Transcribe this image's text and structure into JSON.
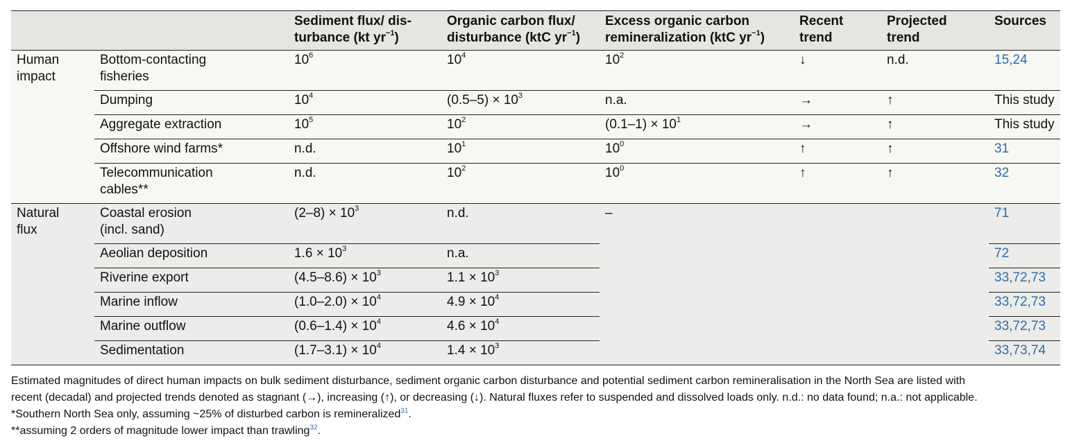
{
  "header": {
    "col_sediment": "Sediment flux/ dis-",
    "col_sediment_2": "turbance (kt yr",
    "col_sediment_sup": "−1",
    "col_organic": "Organic carbon flux/",
    "col_organic_2": "disturbance (ktC yr",
    "col_organic_sup": "−1",
    "col_excess": "Excess organic carbon",
    "col_excess_2": "remineralization (ktC yr",
    "col_excess_sup": "−1",
    "col_recent_1": "Recent",
    "col_recent_2": "trend",
    "col_projected_1": "Projected",
    "col_projected_2": "trend",
    "col_sources": "Sources",
    "close_paren": ")"
  },
  "groups": {
    "human_1": "Human",
    "human_2": "impact",
    "natural_1": "Natural",
    "natural_2": "flux"
  },
  "rows": [
    {
      "activity": "Bottom-contacting",
      "activity_2": "fisheries",
      "sed": "10",
      "sed_sup": "6",
      "org": "10",
      "org_sup": "4",
      "exc": "10",
      "exc_sup": "2",
      "recent": "↓",
      "projected": "n.d.",
      "sources": "15,24"
    },
    {
      "activity": "Dumping",
      "sed": "10",
      "sed_sup": "4",
      "org": "(0.5–5) × 10",
      "org_sup": "3",
      "exc": "n.a.",
      "recent": "→",
      "projected": "↑",
      "sources": "This study"
    },
    {
      "activity": "Aggregate extraction",
      "sed": "10",
      "sed_sup": "5",
      "org": "10",
      "org_sup": "2",
      "exc": "(0.1–1) × 10",
      "exc_sup": "1",
      "recent": "→",
      "projected": "↑",
      "sources": "This study"
    },
    {
      "activity": "Offshore wind farms*",
      "sed": "n.d.",
      "org": "10",
      "org_sup": "1",
      "exc": "10",
      "exc_sup": "0",
      "recent": "↑",
      "projected": "↑",
      "sources": "31"
    },
    {
      "activity": "Telecommunication",
      "activity_2": "cables**",
      "sed": "n.d.",
      "org": "10",
      "org_sup": "2",
      "exc": "10",
      "exc_sup": "0",
      "recent": "↑",
      "projected": "↑",
      "sources": "32"
    },
    {
      "activity": "Coastal erosion",
      "activity_2": "(incl. sand)",
      "sed": "(2–8) × 10",
      "sed_sup": "3",
      "org": "n.d.",
      "exc": "–",
      "sources": "71"
    },
    {
      "activity": "Aeolian deposition",
      "sed": "1.6 × 10",
      "sed_sup": "3",
      "org": "n.a.",
      "sources": "72"
    },
    {
      "activity": "Riverine export",
      "sed": "(4.5–8.6) × 10",
      "sed_sup": "3",
      "org": "1.1 × 10",
      "org_sup": "3",
      "sources": "33,72,73"
    },
    {
      "activity": "Marine inflow",
      "sed": "(1.0–2.0) × 10",
      "sed_sup": "4",
      "org": "4.9 × 10",
      "org_sup": "4",
      "sources": "33,72,73"
    },
    {
      "activity": "Marine outflow",
      "sed": "(0.6–1.4) × 10",
      "sed_sup": "4",
      "org": "4.6 × 10",
      "org_sup": "4",
      "sources": "33,72,73"
    },
    {
      "activity": "Sedimentation",
      "sed": "(1.7–3.1) × 10",
      "sed_sup": "4",
      "org": "1.4 × 10",
      "org_sup": "3",
      "sources": "33,73,74"
    }
  ],
  "notes": {
    "line1": "Estimated magnitudes of direct human impacts on bulk sediment disturbance, sediment organic carbon disturbance and potential sediment carbon remineralisation in the North Sea are listed with",
    "line2": "recent (decadal) and projected trends denoted as stagnant (→), increasing (↑), or decreasing (↓). Natural fluxes refer to suspended and dissolved loads only. n.d.: no data found; n.a.: not applicable.",
    "line3": "*Southern North Sea only, assuming ~25% of disturbed carbon is remineralized",
    "line3_ref": "31",
    "line3_end": ".",
    "line4": "**assuming 2 orders of magnitude lower impact than trawling",
    "line4_ref": "32",
    "line4_end": "."
  },
  "colors": {
    "link": "#2a6db0",
    "header_bg": "#e6e6e0",
    "human_bg": "#f8f8f2",
    "natural_bg": "#ececea"
  }
}
